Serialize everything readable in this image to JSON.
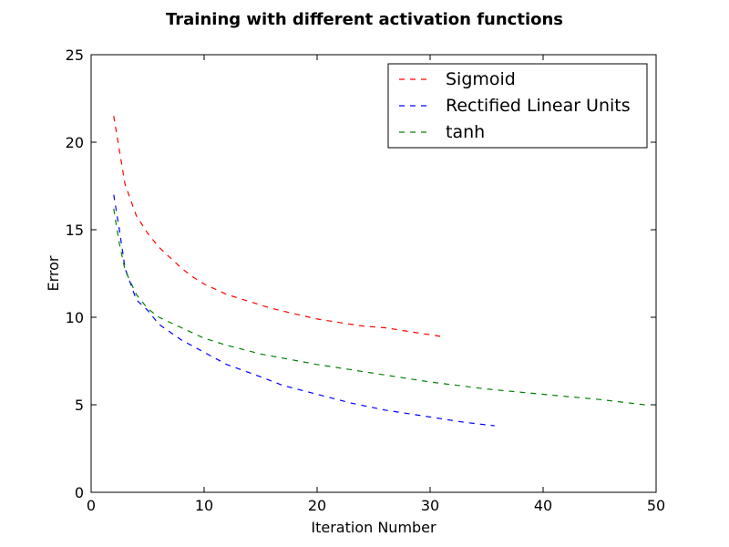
{
  "chart_data": {
    "type": "line",
    "title": "Training with different activation functions",
    "xlabel": "Iteration Number",
    "ylabel": "Error",
    "xlim": [
      0,
      50
    ],
    "ylim": [
      0,
      25
    ],
    "xticks": [
      0,
      10,
      20,
      30,
      40,
      50
    ],
    "yticks": [
      0,
      5,
      10,
      15,
      20,
      25
    ],
    "xtick_labels": [
      "0",
      "10",
      "20",
      "30",
      "40",
      "50"
    ],
    "ytick_labels": [
      "0",
      "5",
      "10",
      "15",
      "20",
      "25"
    ],
    "grid": false,
    "legend_position": "top-right",
    "series": [
      {
        "name": "Sigmoid",
        "color": "#ff0000",
        "line_style": "dashed",
        "x": [
          2,
          3,
          4,
          5,
          6,
          7,
          8,
          9,
          10,
          12,
          14,
          16,
          18,
          20,
          22,
          24,
          26,
          28,
          30,
          31
        ],
        "y": [
          21.5,
          17.6,
          15.8,
          14.8,
          14.0,
          13.4,
          12.8,
          12.3,
          11.9,
          11.3,
          10.9,
          10.5,
          10.2,
          9.9,
          9.7,
          9.5,
          9.4,
          9.2,
          9.0,
          8.9
        ]
      },
      {
        "name": "Rectified Linear Units",
        "color": "#0000ff",
        "line_style": "dashed",
        "x": [
          2,
          2.5,
          3,
          4,
          5,
          6,
          8,
          10,
          12,
          15,
          17,
          20,
          23,
          26,
          30,
          33,
          35.7
        ],
        "y": [
          17.0,
          15.0,
          12.8,
          11.0,
          10.4,
          9.6,
          8.7,
          8.0,
          7.3,
          6.6,
          6.1,
          5.6,
          5.1,
          4.7,
          4.3,
          4.0,
          3.8
        ]
      },
      {
        "name": "tanh",
        "color": "#008000",
        "line_style": "dashed",
        "x": [
          2,
          2.5,
          3,
          4,
          5,
          6,
          8,
          10,
          12,
          15,
          20,
          25,
          30,
          35,
          40,
          45,
          49
        ],
        "y": [
          16.2,
          14.2,
          12.7,
          11.3,
          10.5,
          10.0,
          9.4,
          8.8,
          8.4,
          7.9,
          7.3,
          6.8,
          6.3,
          5.9,
          5.6,
          5.3,
          5.0
        ]
      }
    ]
  }
}
